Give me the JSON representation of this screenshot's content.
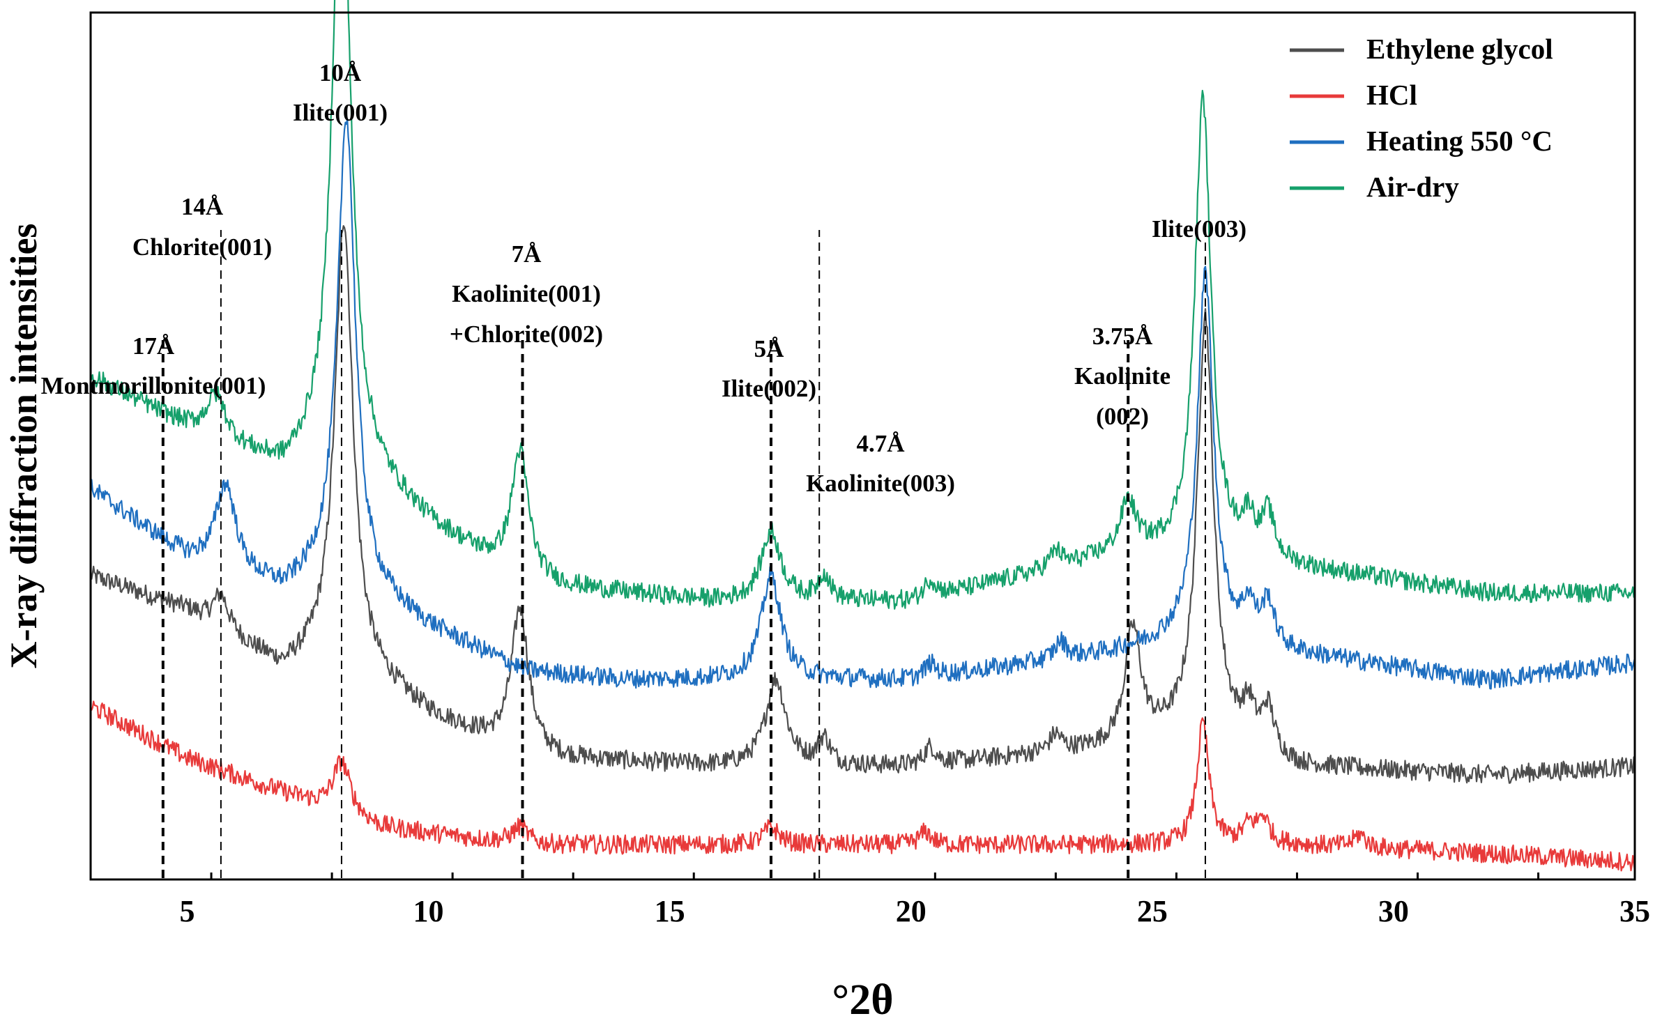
{
  "chart_data": {
    "type": "line",
    "xlabel": "°2θ",
    "ylabel": "X-ray diffraction intensities",
    "xlim": [
      3,
      35
    ],
    "ylim": [
      0,
      100
    ],
    "xticks": [
      5,
      10,
      15,
      20,
      25,
      30,
      35
    ],
    "y_tick_labels": false,
    "legend_position": "top-right",
    "series": [
      {
        "name": "Ethylene glycol",
        "color": "#4d4d4d",
        "baseline": [
          [
            3,
            35
          ],
          [
            5,
            31
          ],
          [
            7,
            24
          ],
          [
            8,
            26
          ],
          [
            10,
            19
          ],
          [
            12,
            14
          ],
          [
            16,
            13
          ],
          [
            20,
            13
          ],
          [
            24,
            15
          ],
          [
            26,
            17
          ],
          [
            28,
            13
          ],
          [
            32,
            12
          ],
          [
            35,
            13
          ]
        ],
        "peaks": [
          [
            5.7,
            4,
            0.2
          ],
          [
            8.25,
            51,
            0.22
          ],
          [
            11.9,
            17,
            0.22
          ],
          [
            17.2,
            10,
            0.25
          ],
          [
            18.2,
            3,
            0.15
          ],
          [
            20.4,
            2,
            0.15
          ],
          [
            23,
            2,
            0.15
          ],
          [
            24.6,
            13,
            0.2
          ],
          [
            26.1,
            48,
            0.2
          ],
          [
            27,
            4,
            0.15
          ],
          [
            27.4,
            5,
            0.15
          ]
        ]
      },
      {
        "name": "HCl",
        "color": "#e83a3a",
        "baseline": [
          [
            3,
            20
          ],
          [
            5,
            14
          ],
          [
            7,
            10
          ],
          [
            9,
            6
          ],
          [
            12,
            4
          ],
          [
            16,
            4
          ],
          [
            20,
            4
          ],
          [
            25,
            4
          ],
          [
            28,
            4
          ],
          [
            32,
            3
          ],
          [
            35,
            2
          ]
        ],
        "peaks": [
          [
            8.2,
            6,
            0.22
          ],
          [
            11.9,
            2,
            0.2
          ],
          [
            17.1,
            2,
            0.2
          ],
          [
            20.3,
            1.5,
            0.15
          ],
          [
            26.05,
            14,
            0.15
          ],
          [
            27,
            2,
            0.15
          ],
          [
            27.3,
            3,
            0.15
          ],
          [
            29.3,
            1.5,
            0.15
          ]
        ]
      },
      {
        "name": "Heating 550 °C",
        "color": "#1f6fc0",
        "baseline": [
          [
            3,
            45
          ],
          [
            5,
            37
          ],
          [
            7,
            33
          ],
          [
            8,
            35
          ],
          [
            10,
            29
          ],
          [
            12,
            24
          ],
          [
            14,
            23
          ],
          [
            16,
            23
          ],
          [
            20,
            23
          ],
          [
            24,
            26
          ],
          [
            26,
            28
          ],
          [
            28,
            26
          ],
          [
            32,
            23
          ],
          [
            35,
            25
          ]
        ],
        "peaks": [
          [
            5.8,
            10,
            0.25
          ],
          [
            8.3,
            54,
            0.22
          ],
          [
            17.1,
            12,
            0.25
          ],
          [
            20.4,
            1.5,
            0.15
          ],
          [
            23.1,
            2,
            0.15
          ],
          [
            26.1,
            42,
            0.2
          ],
          [
            27,
            4,
            0.15
          ],
          [
            27.4,
            5,
            0.15
          ]
        ]
      },
      {
        "name": "Air-dry",
        "color": "#16a06b",
        "baseline": [
          [
            3,
            58
          ],
          [
            5,
            52
          ],
          [
            7,
            47
          ],
          [
            8,
            50
          ],
          [
            10,
            41
          ],
          [
            12,
            34
          ],
          [
            14,
            33
          ],
          [
            16,
            32
          ],
          [
            20,
            32
          ],
          [
            24,
            37
          ],
          [
            26,
            38
          ],
          [
            28,
            36
          ],
          [
            32,
            33
          ],
          [
            35,
            33
          ]
        ],
        "peaks": [
          [
            5.6,
            5,
            0.25
          ],
          [
            8.2,
            74,
            0.22
          ],
          [
            11.9,
            15,
            0.22
          ],
          [
            17.1,
            8,
            0.25
          ],
          [
            18.2,
            3,
            0.15
          ],
          [
            20.4,
            2,
            0.15
          ],
          [
            23,
            2,
            0.15
          ],
          [
            24.5,
            6,
            0.2
          ],
          [
            26.05,
            52,
            0.2
          ],
          [
            27,
            4,
            0.15
          ],
          [
            27.4,
            5,
            0.15
          ]
        ]
      }
    ],
    "reference_lines": [
      {
        "x": 4.5,
        "style": "thick"
      },
      {
        "x": 5.7,
        "style": "thin"
      },
      {
        "x": 8.2,
        "style": "thin"
      },
      {
        "x": 11.95,
        "style": "thick"
      },
      {
        "x": 17.1,
        "style": "thick"
      },
      {
        "x": 18.1,
        "style": "thin"
      },
      {
        "x": 24.5,
        "style": "thick"
      },
      {
        "x": 26.1,
        "style": "thin"
      }
    ],
    "annotations": [
      {
        "x": 4.5,
        "lines": [
          "17Å",
          "Montmorillonite(001)"
        ]
      },
      {
        "x": 5.7,
        "lines": [
          "14Å",
          "Chlorite(001)"
        ]
      },
      {
        "x": 8.2,
        "lines": [
          "10Å",
          "Ilite(001)"
        ]
      },
      {
        "x": 11.95,
        "lines": [
          "7Å",
          "Kaolinite(001)",
          "+Chlorite(002)"
        ]
      },
      {
        "x": 17.1,
        "lines": [
          "5Å",
          "Ilite(002)"
        ]
      },
      {
        "x": 18.1,
        "lines": [
          "4.7Å",
          "Kaolinite(003)"
        ]
      },
      {
        "x": 24.5,
        "lines": [
          "3.75Å",
          "Kaolinite",
          "(002)"
        ]
      },
      {
        "x": 26.1,
        "lines": [
          "Ilite(003)"
        ]
      }
    ]
  }
}
